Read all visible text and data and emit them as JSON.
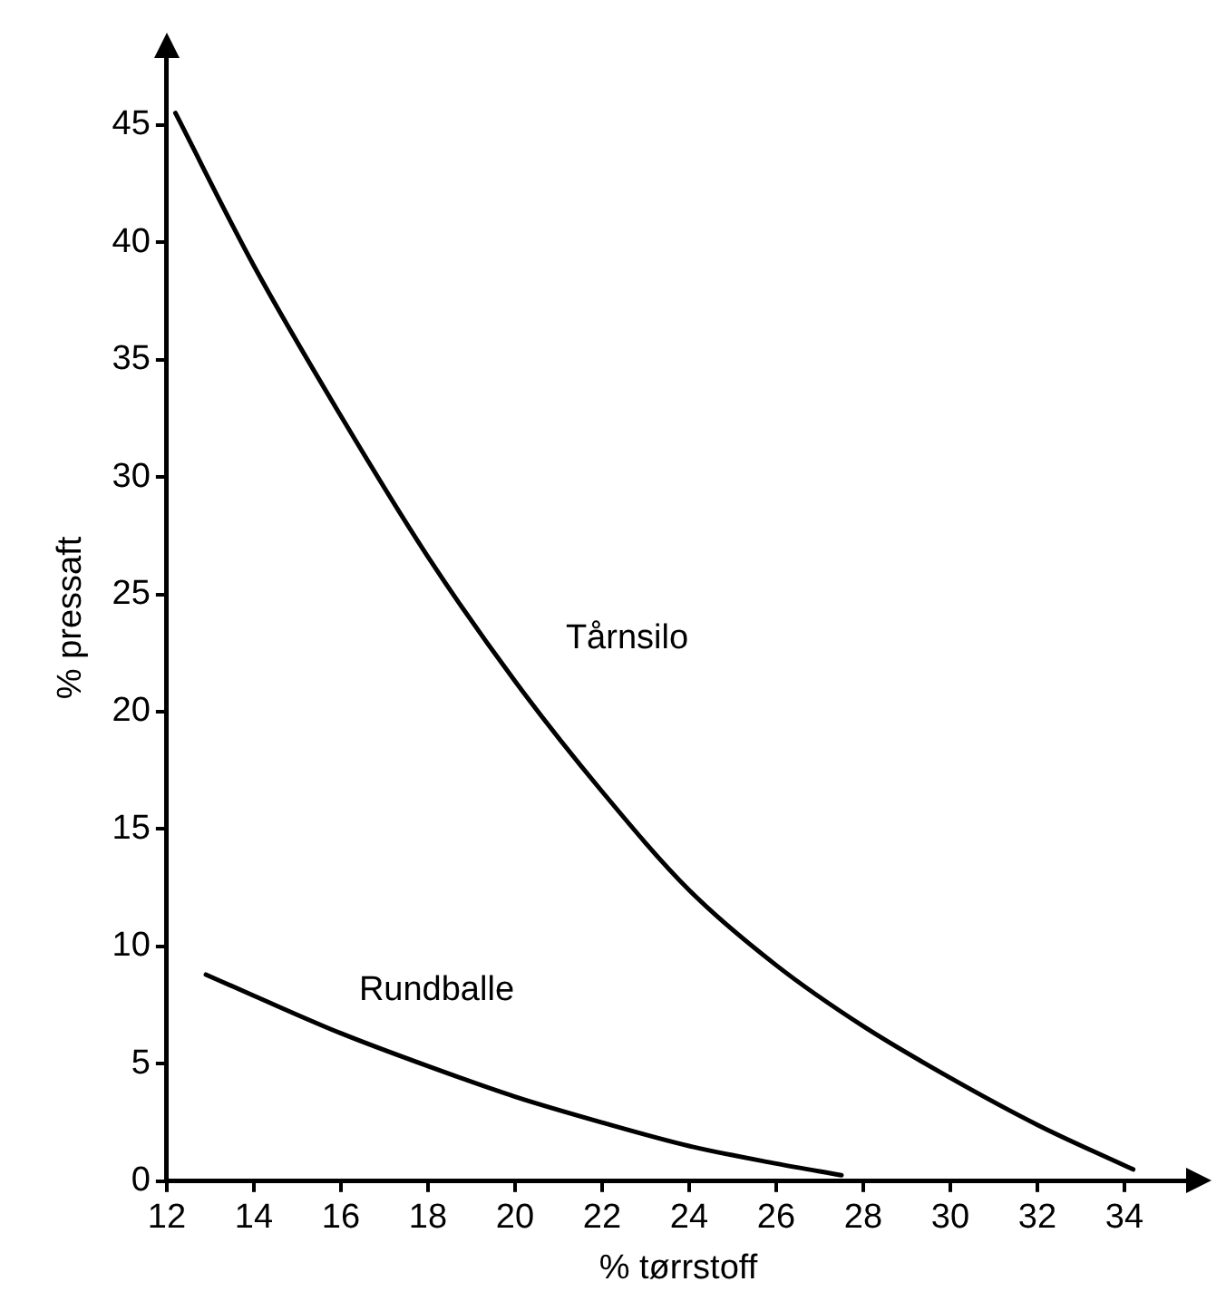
{
  "chart_data": {
    "type": "line",
    "xlabel": "% tørrstoff",
    "ylabel": "% pressaft",
    "xlim": [
      12,
      35.5
    ],
    "ylim": [
      0,
      48
    ],
    "xticks": [
      12,
      14,
      16,
      18,
      20,
      22,
      24,
      26,
      28,
      30,
      32,
      34
    ],
    "yticks": [
      0,
      5,
      10,
      15,
      20,
      25,
      30,
      35,
      40,
      45
    ],
    "grid": false,
    "legend": false,
    "marker": "none",
    "line_style": "solid",
    "series": [
      {
        "name": "Tårnsilo",
        "color": "#000000",
        "x": [
          12.2,
          14,
          16,
          18,
          20,
          22,
          24,
          26,
          28,
          30,
          32,
          34.2
        ],
        "values": [
          45.5,
          39,
          32.6,
          26.6,
          21.3,
          16.6,
          12.4,
          9.2,
          6.6,
          4.4,
          2.4,
          0.5
        ]
      },
      {
        "name": "Rundballe",
        "color": "#000000",
        "x": [
          12.9,
          14,
          16,
          18,
          20,
          22,
          24,
          26,
          27.5
        ],
        "values": [
          8.8,
          7.9,
          6.3,
          4.9,
          3.6,
          2.5,
          1.5,
          0.75,
          0.25
        ]
      }
    ]
  }
}
